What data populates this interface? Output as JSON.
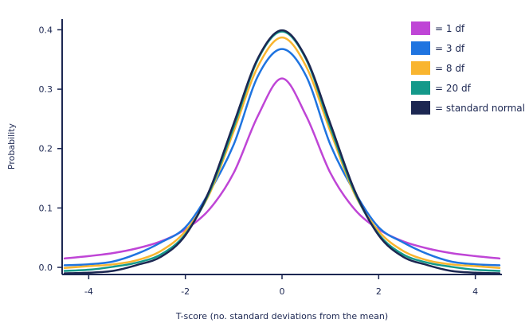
{
  "chart_data": {
    "type": "line",
    "title": "",
    "xlabel": "T-score (no. standard deviations from the mean)",
    "ylabel": "Probability",
    "xlim": [
      -4.55,
      4.55
    ],
    "ylim": [
      -0.012,
      0.418
    ],
    "x_ticks": [
      {
        "value": -4,
        "label": "-4"
      },
      {
        "value": -2,
        "label": "-2"
      },
      {
        "value": 0,
        "label": "0"
      },
      {
        "value": 2,
        "label": "2"
      },
      {
        "value": 4,
        "label": "4"
      }
    ],
    "y_ticks": [
      {
        "value": 0.0,
        "label": "0.0"
      },
      {
        "value": 0.1,
        "label": "0.1"
      },
      {
        "value": 0.2,
        "label": "0.2"
      },
      {
        "value": 0.3,
        "label": "0.3"
      },
      {
        "value": 0.4,
        "label": "0.4"
      }
    ],
    "grid": false,
    "legend_position": "top-right",
    "x": [
      -4.5,
      -4.0,
      -3.5,
      -3.0,
      -2.5,
      -2.0,
      -1.5,
      -1.0,
      -0.5,
      0.0,
      0.5,
      1.0,
      1.5,
      2.0,
      2.5,
      3.0,
      3.5,
      4.0,
      4.5
    ],
    "series": [
      {
        "name": "= 1 df",
        "color": "#bf45d6",
        "values": [
          0.015,
          0.019,
          0.024,
          0.032,
          0.044,
          0.064,
          0.098,
          0.159,
          0.255,
          0.318,
          0.255,
          0.159,
          0.098,
          0.064,
          0.044,
          0.032,
          0.024,
          0.019,
          0.015
        ]
      },
      {
        "name": "= 3 df",
        "color": "#1f74e0",
        "values": [
          0.0035,
          0.0051,
          0.0098,
          0.0229,
          0.0422,
          0.0675,
          0.1274,
          0.2067,
          0.322,
          0.3676,
          0.322,
          0.2067,
          0.1274,
          0.0675,
          0.0422,
          0.0229,
          0.0098,
          0.0051,
          0.0035
        ]
      },
      {
        "name": "= 8 df",
        "color": "#f9b52f",
        "values": [
          -0.001,
          0.002,
          0.005,
          0.012,
          0.028,
          0.061,
          0.124,
          0.229,
          0.338,
          0.387,
          0.338,
          0.229,
          0.124,
          0.061,
          0.028,
          0.012,
          0.005,
          0.002,
          -0.001
        ]
      },
      {
        "name": "= 20 df",
        "color": "#14998a",
        "values": [
          -0.006,
          -0.004,
          0.001,
          0.008,
          0.022,
          0.056,
          0.127,
          0.236,
          0.35,
          0.397,
          0.35,
          0.236,
          0.127,
          0.056,
          0.022,
          0.008,
          0.001,
          -0.004,
          -0.006
        ]
      },
      {
        "name": "= standard normal",
        "color": "#1c2752",
        "values": [
          -0.01,
          -0.009,
          -0.006,
          0.004,
          0.018,
          0.054,
          0.13,
          0.242,
          0.352,
          0.399,
          0.352,
          0.242,
          0.13,
          0.054,
          0.018,
          0.004,
          -0.006,
          -0.009,
          -0.01
        ]
      }
    ]
  }
}
